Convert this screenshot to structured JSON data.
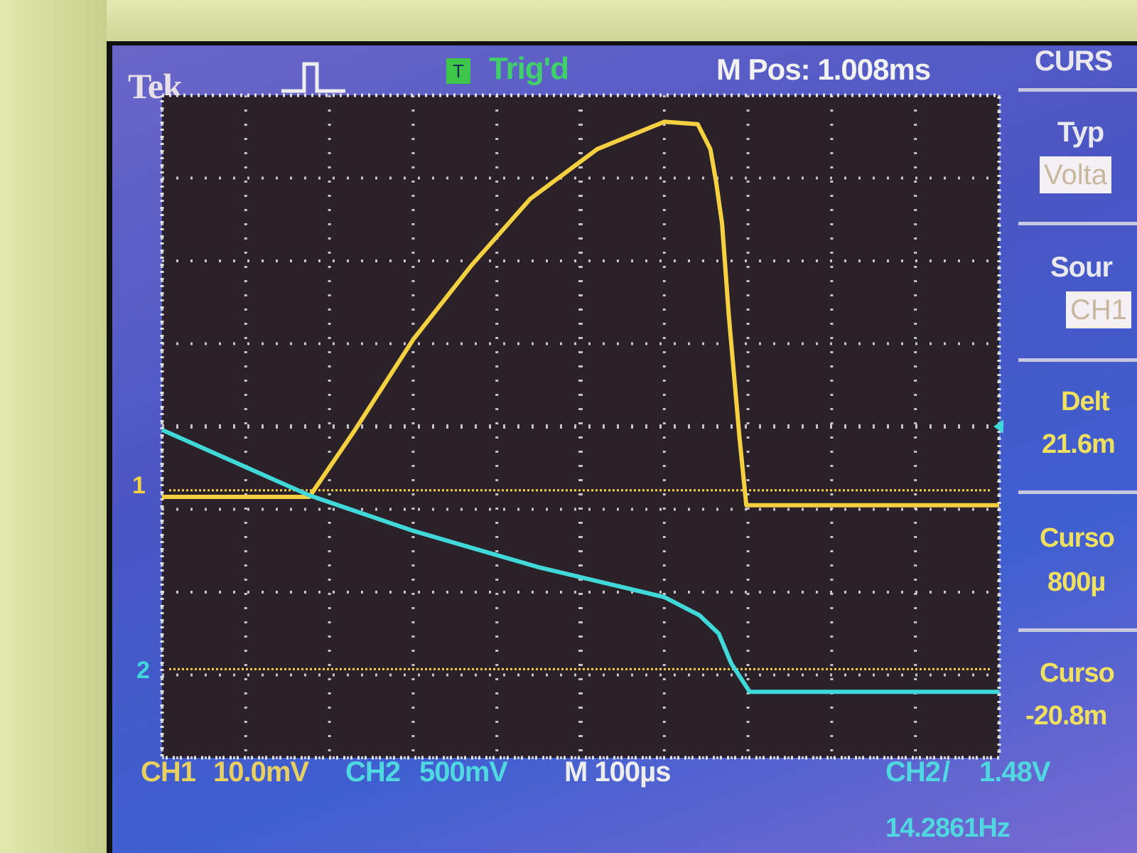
{
  "header": {
    "brand": "Tek",
    "trigger_badge": "T",
    "trigger_status": "Trig'd",
    "m_pos": "M Pos: 1.008ms",
    "trigger_icon": "rising-pulse-icon"
  },
  "menu": {
    "title": "CURS",
    "type_label": "Typ",
    "type_value": "Volta",
    "source_label": "Sour",
    "source_value": "CH1",
    "delta_label": "Delt",
    "delta_value": "21.6m",
    "cursor1_label": "Curso",
    "cursor1_value": "800µ",
    "cursor2_label": "Curso",
    "cursor2_value": "-20.8m"
  },
  "footer": {
    "ch1_label": "CH1",
    "ch1_scale": "10.0mV",
    "ch2_label": "CH2",
    "ch2_scale": "500mV",
    "timebase": "M 100µs",
    "trigger_source": "CH2",
    "trigger_level": "1.48V",
    "frequency": "14.2861Hz"
  },
  "markers": {
    "ch1": "1",
    "ch2": "2"
  },
  "colors": {
    "ch1": "#f5d040",
    "ch2": "#40d8d8",
    "grid": "#e0e0e8",
    "background": "#2a2228"
  },
  "chart_data": {
    "type": "line",
    "title": "",
    "grid": true,
    "divisions": {
      "x": 10,
      "y": 8
    },
    "xlim_us": [
      0,
      1000
    ],
    "series": [
      {
        "name": "CH1",
        "units": "mV",
        "points": [
          [
            0,
            0
          ],
          [
            176,
            0
          ],
          [
            230,
            8
          ],
          [
            300,
            19
          ],
          [
            370,
            28
          ],
          [
            440,
            36
          ],
          [
            520,
            42
          ],
          [
            600,
            45.3
          ],
          [
            640,
            45
          ],
          [
            655,
            42
          ],
          [
            662,
            38
          ],
          [
            669,
            33
          ],
          [
            677,
            22
          ],
          [
            690,
            7
          ],
          [
            698,
            -1
          ],
          [
            1000,
            -1
          ]
        ]
      },
      {
        "name": "CH2",
        "units": "mV",
        "points": [
          [
            0,
            1530
          ],
          [
            176,
            1134
          ],
          [
            300,
            920
          ],
          [
            450,
            700
          ],
          [
            600,
            520
          ],
          [
            642,
            410
          ],
          [
            665,
            300
          ],
          [
            680,
            120
          ],
          [
            702,
            -52
          ],
          [
            1000,
            -52
          ]
        ]
      }
    ],
    "cursors_mV": [
      0.8,
      -20.8
    ]
  }
}
